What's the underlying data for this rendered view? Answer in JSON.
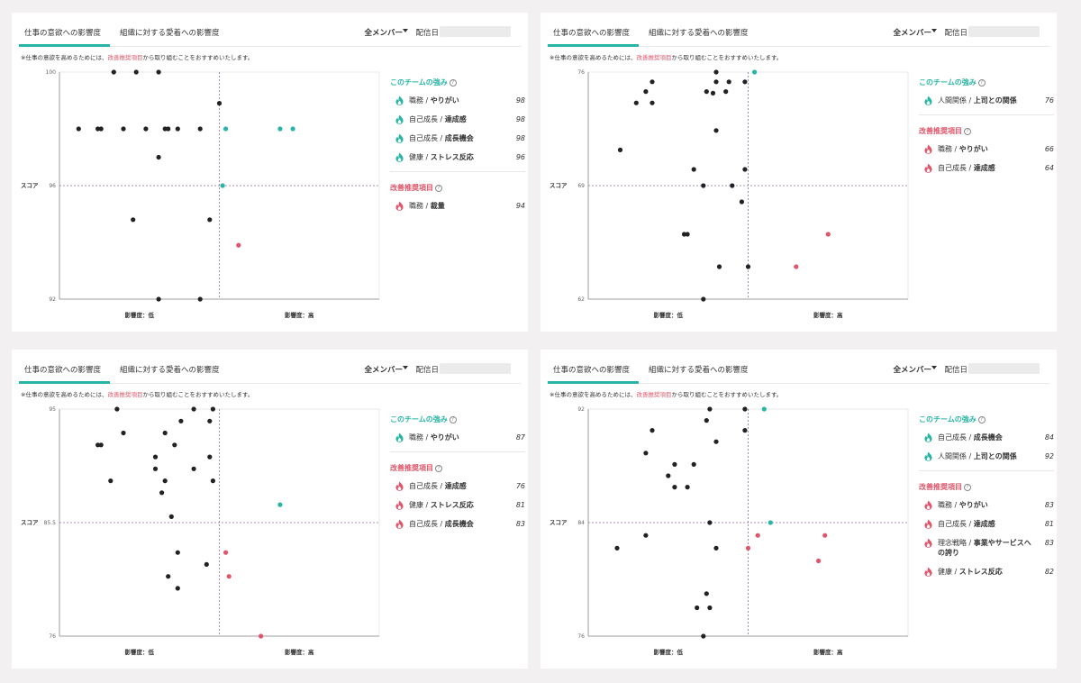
{
  "ui": {
    "tab_active": "仕事の意欲への影響度",
    "tab_other": "組織に対する愛着への影響度",
    "members": "全メンバー",
    "date_label": "配信日",
    "note_prefix": "仕事の意欲を高めるためには、",
    "note_highlight": "改善推奨項目",
    "note_suffix": "から取り組むことをおすすめいたします。",
    "strengths_title": "このチームの強み",
    "improve_title": "改善推奨項目",
    "help_glyph": "?",
    "ylabel": "スコア",
    "xlabel_low": "影響度：低",
    "xlabel_high": "影響度：高"
  },
  "colors": {
    "accent": "#29b5a5",
    "warn": "#e0556a",
    "dot": "#222222"
  },
  "panels": [
    {
      "strengths": [
        {
          "cat": "職務",
          "name": "やりがい",
          "score": "98"
        },
        {
          "cat": "自己成長",
          "name": "達成感",
          "score": "98"
        },
        {
          "cat": "自己成長",
          "name": "成長機会",
          "score": "98"
        },
        {
          "cat": "健康",
          "name": "ストレス反応",
          "score": "96"
        }
      ],
      "improvements": [
        {
          "cat": "職務",
          "name": "裁量",
          "score": "94"
        }
      ],
      "chart_data": {
        "type": "scatter",
        "ylabel": "スコア",
        "xlabel_low": "影響度：低",
        "xlabel_high": "影響度：高",
        "yticks": [
          "100",
          "96",
          "92"
        ],
        "ylim": [
          92,
          100
        ],
        "xlim": [
          0,
          1
        ],
        "xmid": 0.5,
        "points": [
          {
            "x": 0.17,
            "y": 100,
            "t": "n"
          },
          {
            "x": 0.24,
            "y": 100,
            "t": "n"
          },
          {
            "x": 0.31,
            "y": 100,
            "t": "n"
          },
          {
            "x": 0.5,
            "y": 98.9,
            "t": "n"
          },
          {
            "x": 0.06,
            "y": 98.0,
            "t": "n"
          },
          {
            "x": 0.12,
            "y": 98.0,
            "t": "n"
          },
          {
            "x": 0.13,
            "y": 98.0,
            "t": "n"
          },
          {
            "x": 0.2,
            "y": 98.0,
            "t": "n"
          },
          {
            "x": 0.27,
            "y": 98.0,
            "t": "n"
          },
          {
            "x": 0.33,
            "y": 98.0,
            "t": "n"
          },
          {
            "x": 0.34,
            "y": 98.0,
            "t": "n"
          },
          {
            "x": 0.37,
            "y": 98.0,
            "t": "n"
          },
          {
            "x": 0.44,
            "y": 98.0,
            "t": "n"
          },
          {
            "x": 0.52,
            "y": 98.0,
            "t": "s"
          },
          {
            "x": 0.69,
            "y": 98.0,
            "t": "s"
          },
          {
            "x": 0.73,
            "y": 98.0,
            "t": "s"
          },
          {
            "x": 0.31,
            "y": 97.0,
            "t": "n"
          },
          {
            "x": 0.51,
            "y": 96.0,
            "t": "s"
          },
          {
            "x": 0.23,
            "y": 94.8,
            "t": "n"
          },
          {
            "x": 0.47,
            "y": 94.8,
            "t": "n"
          },
          {
            "x": 0.56,
            "y": 93.9,
            "t": "i"
          },
          {
            "x": 0.31,
            "y": 92,
            "t": "n"
          },
          {
            "x": 0.44,
            "y": 92,
            "t": "n"
          }
        ]
      }
    },
    {
      "strengths": [
        {
          "cat": "人間関係",
          "name": "上司との関係",
          "score": "76"
        }
      ],
      "improvements": [
        {
          "cat": "職務",
          "name": "やりがい",
          "score": "66"
        },
        {
          "cat": "自己成長",
          "name": "達成感",
          "score": "64"
        }
      ],
      "chart_data": {
        "type": "scatter",
        "ylabel": "スコア",
        "xlabel_low": "影響度：低",
        "xlabel_high": "影響度：高",
        "yticks": [
          "76",
          "69",
          "62"
        ],
        "ylim": [
          62,
          76
        ],
        "xlim": [
          0,
          1
        ],
        "xmid": 0.5,
        "points": [
          {
            "x": 0.4,
            "y": 76,
            "t": "n"
          },
          {
            "x": 0.52,
            "y": 76,
            "t": "s"
          },
          {
            "x": 0.2,
            "y": 75.4,
            "t": "n"
          },
          {
            "x": 0.4,
            "y": 75.4,
            "t": "n"
          },
          {
            "x": 0.44,
            "y": 75.4,
            "t": "n"
          },
          {
            "x": 0.49,
            "y": 75.4,
            "t": "n"
          },
          {
            "x": 0.39,
            "y": 74.7,
            "t": "n"
          },
          {
            "x": 0.18,
            "y": 74.8,
            "t": "n"
          },
          {
            "x": 0.37,
            "y": 74.8,
            "t": "n"
          },
          {
            "x": 0.43,
            "y": 74.8,
            "t": "n"
          },
          {
            "x": 0.15,
            "y": 74.1,
            "t": "n"
          },
          {
            "x": 0.2,
            "y": 74.1,
            "t": "n"
          },
          {
            "x": 0.4,
            "y": 72.4,
            "t": "n"
          },
          {
            "x": 0.1,
            "y": 71.2,
            "t": "n"
          },
          {
            "x": 0.33,
            "y": 70.0,
            "t": "n"
          },
          {
            "x": 0.49,
            "y": 70.0,
            "t": "n"
          },
          {
            "x": 0.36,
            "y": 69.0,
            "t": "n"
          },
          {
            "x": 0.45,
            "y": 69.0,
            "t": "n"
          },
          {
            "x": 0.48,
            "y": 68.0,
            "t": "n"
          },
          {
            "x": 0.3,
            "y": 66.0,
            "t": "n"
          },
          {
            "x": 0.31,
            "y": 66.0,
            "t": "n"
          },
          {
            "x": 0.75,
            "y": 66.0,
            "t": "i"
          },
          {
            "x": 0.41,
            "y": 64.0,
            "t": "n"
          },
          {
            "x": 0.5,
            "y": 64.0,
            "t": "n"
          },
          {
            "x": 0.65,
            "y": 64.0,
            "t": "i"
          },
          {
            "x": 0.36,
            "y": 62,
            "t": "n"
          }
        ]
      }
    },
    {
      "strengths": [
        {
          "cat": "職務",
          "name": "やりがい",
          "score": "87"
        }
      ],
      "improvements": [
        {
          "cat": "自己成長",
          "name": "達成感",
          "score": "76"
        },
        {
          "cat": "健康",
          "name": "ストレス反応",
          "score": "81"
        },
        {
          "cat": "自己成長",
          "name": "成長機会",
          "score": "83"
        }
      ],
      "chart_data": {
        "type": "scatter",
        "ylabel": "スコア",
        "xlabel_low": "影響度：低",
        "xlabel_high": "影響度：高",
        "yticks": [
          "95",
          "85.5",
          "76"
        ],
        "ylim": [
          76,
          95
        ],
        "xlim": [
          0,
          1
        ],
        "xmid": 0.5,
        "points": [
          {
            "x": 0.18,
            "y": 95,
            "t": "n"
          },
          {
            "x": 0.42,
            "y": 95,
            "t": "n"
          },
          {
            "x": 0.48,
            "y": 95,
            "t": "n"
          },
          {
            "x": 0.38,
            "y": 94.0,
            "t": "n"
          },
          {
            "x": 0.47,
            "y": 94.0,
            "t": "n"
          },
          {
            "x": 0.2,
            "y": 93.0,
            "t": "n"
          },
          {
            "x": 0.33,
            "y": 93.0,
            "t": "n"
          },
          {
            "x": 0.12,
            "y": 92.0,
            "t": "n"
          },
          {
            "x": 0.13,
            "y": 92.0,
            "t": "n"
          },
          {
            "x": 0.36,
            "y": 92.0,
            "t": "n"
          },
          {
            "x": 0.3,
            "y": 91.0,
            "t": "n"
          },
          {
            "x": 0.47,
            "y": 91.0,
            "t": "n"
          },
          {
            "x": 0.3,
            "y": 90.0,
            "t": "n"
          },
          {
            "x": 0.42,
            "y": 90.0,
            "t": "n"
          },
          {
            "x": 0.16,
            "y": 89.0,
            "t": "n"
          },
          {
            "x": 0.33,
            "y": 89.0,
            "t": "n"
          },
          {
            "x": 0.48,
            "y": 89.0,
            "t": "n"
          },
          {
            "x": 0.32,
            "y": 88.0,
            "t": "n"
          },
          {
            "x": 0.69,
            "y": 87.0,
            "t": "s"
          },
          {
            "x": 0.35,
            "y": 86.0,
            "t": "n"
          },
          {
            "x": 0.52,
            "y": 83.0,
            "t": "i"
          },
          {
            "x": 0.37,
            "y": 83.0,
            "t": "n"
          },
          {
            "x": 0.46,
            "y": 82.0,
            "t": "n"
          },
          {
            "x": 0.34,
            "y": 81.0,
            "t": "n"
          },
          {
            "x": 0.53,
            "y": 81.0,
            "t": "i"
          },
          {
            "x": 0.37,
            "y": 80.0,
            "t": "n"
          },
          {
            "x": 0.63,
            "y": 76,
            "t": "i"
          }
        ]
      }
    },
    {
      "strengths": [
        {
          "cat": "自己成長",
          "name": "成長機会",
          "score": "84"
        },
        {
          "cat": "人間関係",
          "name": "上司との関係",
          "score": "92"
        }
      ],
      "improvements": [
        {
          "cat": "職務",
          "name": "やりがい",
          "score": "83"
        },
        {
          "cat": "自己成長",
          "name": "達成感",
          "score": "81"
        },
        {
          "cat": "理念戦略",
          "name": "事業やサービスへの誇り",
          "score": "83"
        },
        {
          "cat": "健康",
          "name": "ストレス反応",
          "score": "82"
        }
      ],
      "chart_data": {
        "type": "scatter",
        "ylabel": "スコア",
        "xlabel_low": "影響度：低",
        "xlabel_high": "影響度：高",
        "yticks": [
          "92",
          "84",
          "76"
        ],
        "ylim": [
          76,
          92
        ],
        "xlim": [
          0,
          1
        ],
        "xmid": 0.5,
        "points": [
          {
            "x": 0.38,
            "y": 92,
            "t": "n"
          },
          {
            "x": 0.49,
            "y": 92,
            "t": "n"
          },
          {
            "x": 0.55,
            "y": 92,
            "t": "s"
          },
          {
            "x": 0.37,
            "y": 91.2,
            "t": "n"
          },
          {
            "x": 0.2,
            "y": 90.5,
            "t": "n"
          },
          {
            "x": 0.49,
            "y": 90.5,
            "t": "n"
          },
          {
            "x": 0.4,
            "y": 89.7,
            "t": "n"
          },
          {
            "x": 0.18,
            "y": 88.9,
            "t": "n"
          },
          {
            "x": 0.27,
            "y": 88.1,
            "t": "n"
          },
          {
            "x": 0.33,
            "y": 88.1,
            "t": "n"
          },
          {
            "x": 0.25,
            "y": 87.3,
            "t": "n"
          },
          {
            "x": 0.27,
            "y": 86.5,
            "t": "n"
          },
          {
            "x": 0.31,
            "y": 86.5,
            "t": "n"
          },
          {
            "x": 0.38,
            "y": 84.0,
            "t": "n"
          },
          {
            "x": 0.57,
            "y": 84.0,
            "t": "s"
          },
          {
            "x": 0.18,
            "y": 83.1,
            "t": "n"
          },
          {
            "x": 0.53,
            "y": 83.1,
            "t": "i"
          },
          {
            "x": 0.74,
            "y": 83.1,
            "t": "i"
          },
          {
            "x": 0.09,
            "y": 82.2,
            "t": "n"
          },
          {
            "x": 0.4,
            "y": 82.2,
            "t": "n"
          },
          {
            "x": 0.5,
            "y": 82.2,
            "t": "i"
          },
          {
            "x": 0.72,
            "y": 81.3,
            "t": "i"
          },
          {
            "x": 0.37,
            "y": 79.0,
            "t": "n"
          },
          {
            "x": 0.34,
            "y": 78.0,
            "t": "n"
          },
          {
            "x": 0.38,
            "y": 78.0,
            "t": "n"
          },
          {
            "x": 0.36,
            "y": 76,
            "t": "n"
          }
        ]
      }
    }
  ]
}
